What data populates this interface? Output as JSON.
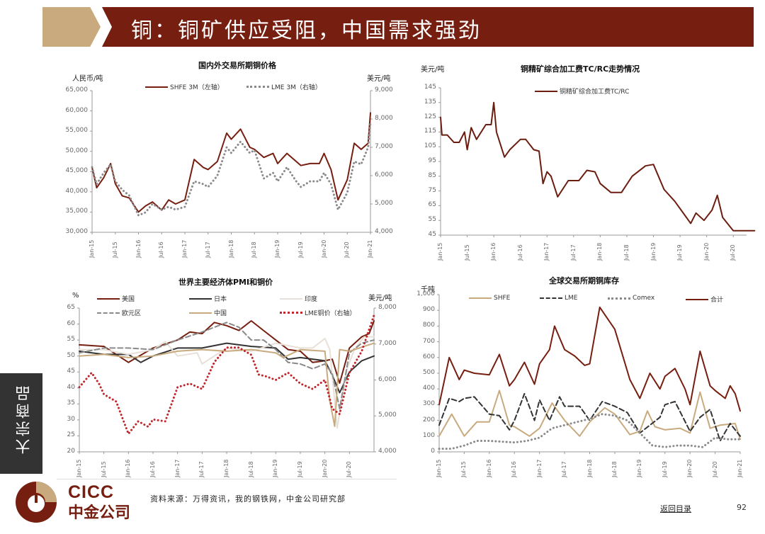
{
  "header": {
    "title": "铜：铜矿供应受阻，中国需求强劲"
  },
  "side_label": "大宗商品",
  "footer": {
    "logo_en": "CICC",
    "logo_cn": "中金公司",
    "source": "资料来源：万得资讯，我的钢铁网，中金公司研究部",
    "back_link": "返回目录",
    "page_number": "92"
  },
  "colors": {
    "brand": "#761f10",
    "gold": "#c8aa7e",
    "dark": "#333333"
  },
  "chart_data": [
    {
      "id": "copper-price",
      "type": "line",
      "title": "国内外交易所期铜价格",
      "ylabel_left": "人民币/吨",
      "ylabel_right": "美元/吨",
      "ylim_left": [
        30000,
        65000
      ],
      "ylim_right": [
        4000,
        9000
      ],
      "yticks_left": [
        "65,000",
        "60,000",
        "55,000",
        "50,000",
        "45,000",
        "40,000",
        "35,000",
        "30,000"
      ],
      "yticks_right": [
        "9,000",
        "8,000",
        "7,000",
        "6,000",
        "5,000",
        "4,000"
      ],
      "xticks": [
        "Jan-15",
        "Jul-15",
        "Jan-16",
        "Jul-16",
        "Jan-17",
        "Jul-17",
        "Jan-18",
        "Jul-18",
        "Jan-19",
        "Jul-19",
        "Jan-20",
        "Jul-20",
        "Jan-21"
      ],
      "legend": [
        "SHFE 3M（左轴）",
        "LME 3M（右轴）"
      ],
      "series": [
        {
          "name": "SHFE 3M（左轴）",
          "axis": "left",
          "color": "#761f10",
          "style": "solid",
          "x": [
            0,
            0.2,
            0.5,
            0.8,
            1,
            1.3,
            1.6,
            2,
            2.3,
            2.6,
            3,
            3.3,
            3.6,
            4,
            4.4,
            4.8,
            5,
            5.4,
            5.8,
            6,
            6.4,
            6.8,
            7,
            7.4,
            7.8,
            8,
            8.4,
            8.8,
            9,
            9.4,
            9.8,
            10,
            10.3,
            10.6,
            11,
            11.3,
            11.6,
            11.9,
            12
          ],
          "values": [
            46000,
            41000,
            43500,
            47000,
            42000,
            39000,
            38500,
            35000,
            36500,
            37500,
            35500,
            38000,
            37000,
            38000,
            48000,
            46000,
            45500,
            47500,
            54500,
            53000,
            55500,
            51000,
            50500,
            48500,
            49500,
            47000,
            49500,
            47500,
            46500,
            47000,
            47000,
            49500,
            45500,
            38000,
            43000,
            52000,
            50500,
            52000,
            59500
          ]
        },
        {
          "name": "LME 3M（右轴）",
          "axis": "right",
          "color": "#8a8a8a",
          "style": "dotted",
          "x": [
            0,
            0.2,
            0.5,
            0.8,
            1,
            1.3,
            1.6,
            2,
            2.3,
            2.6,
            3,
            3.3,
            3.6,
            4,
            4.4,
            4.8,
            5,
            5.4,
            5.8,
            6,
            6.4,
            6.8,
            7,
            7.4,
            7.8,
            8,
            8.4,
            8.8,
            9,
            9.4,
            9.8,
            10,
            10.3,
            10.6,
            11,
            11.3,
            11.6,
            11.9,
            12
          ],
          "values": [
            6300,
            5700,
            6100,
            6400,
            5800,
            5500,
            5300,
            4600,
            4700,
            5000,
            4800,
            4900,
            4800,
            4900,
            5800,
            5700,
            5600,
            6000,
            7000,
            6800,
            7200,
            6800,
            6900,
            5900,
            6100,
            5800,
            6300,
            5800,
            5600,
            5800,
            5800,
            6100,
            5700,
            4800,
            5400,
            6500,
            6400,
            7000,
            7900
          ]
        }
      ]
    },
    {
      "id": "tc-rc",
      "type": "line",
      "title": "铜精矿综合加工费TC/RC走势情况",
      "ylabel": "美元/吨",
      "ylim": [
        45,
        145
      ],
      "yticks": [
        "145",
        "135",
        "125",
        "115",
        "105",
        "95",
        "85",
        "75",
        "65",
        "55",
        "45"
      ],
      "xticks": [
        "Jan-15",
        "Jul-15",
        "Jan-16",
        "Jul-16",
        "Jan-17",
        "Jul-17",
        "Jan-18",
        "Jul-18",
        "Jan-19",
        "Jul-19",
        "Jan-20",
        "Jul-20"
      ],
      "legend": [
        "铜精矿综合加工费TC/RC"
      ],
      "series": [
        {
          "name": "铜精矿综合加工费TC/RC",
          "color": "#6b1d10",
          "style": "solid",
          "x": [
            0,
            0.05,
            0.25,
            0.5,
            0.7,
            0.9,
            1.0,
            1.15,
            1.35,
            1.7,
            1.9,
            2.0,
            2.1,
            2.4,
            2.6,
            3.0,
            3.2,
            3.5,
            3.7,
            3.85,
            4.0,
            4.15,
            4.4,
            4.8,
            5.2,
            5.5,
            5.8,
            6.0,
            6.4,
            6.8,
            7.2,
            7.7,
            8.0,
            8.4,
            8.8,
            9.2,
            9.4,
            9.6,
            9.9,
            10.2,
            10.4,
            10.6,
            11.0,
            11.6,
            11.8
          ],
          "values": [
            125,
            113,
            113,
            108,
            108,
            115,
            103,
            118,
            110,
            120,
            120,
            135,
            115,
            98,
            103,
            110,
            110,
            103,
            102,
            80,
            88,
            85,
            71,
            82,
            82,
            89,
            88,
            80,
            74,
            74,
            85,
            92,
            93,
            76,
            68,
            58,
            53,
            60,
            55,
            62,
            72,
            57,
            48,
            48,
            48
          ]
        }
      ]
    },
    {
      "id": "pmi",
      "type": "line",
      "title": "世界主要经济体PMI和铜价",
      "ylabel_left": "%",
      "ylabel_right": "美元/吨",
      "ylim_left": [
        20,
        65
      ],
      "ylim_right": [
        4000,
        8000
      ],
      "yticks_left": [
        "65",
        "60",
        "55",
        "50",
        "45",
        "40",
        "35",
        "30",
        "25",
        "20"
      ],
      "yticks_right": [
        "8,000",
        "7,000",
        "6,000",
        "5,000",
        "4,000"
      ],
      "xticks": [
        "Jan-15",
        "Jul-15",
        "Jan-16",
        "Jul-16",
        "Jan-17",
        "Jul-17",
        "Jan-18",
        "Jul-18",
        "Jan-19",
        "Jul-19",
        "Jan-20",
        "Jul-20"
      ],
      "legend": [
        "美国",
        "日本",
        "印度",
        "欧元区",
        "中国",
        "LME铜价（右轴）"
      ],
      "series": [
        {
          "name": "美国",
          "color": "#761f10",
          "style": "solid",
          "x": [
            0,
            1,
            2,
            3,
            4,
            4.5,
            5,
            5.5,
            6,
            6.5,
            7,
            7.5,
            8,
            8.5,
            9,
            9.5,
            10,
            10.3,
            10.6,
            11,
            11.5,
            11.8,
            12
          ],
          "values": [
            53.5,
            53,
            48,
            52.5,
            55,
            57.5,
            57,
            60.5,
            59.5,
            58,
            61,
            58,
            55,
            52,
            51.5,
            48,
            48.5,
            49,
            41.5,
            52.5,
            56,
            57,
            61
          ]
        },
        {
          "name": "日本",
          "color": "#333333",
          "style": "solid",
          "x": [
            0,
            1,
            2,
            2.5,
            3,
            4,
            5,
            6,
            7,
            8,
            8.5,
            9,
            10,
            10.3,
            10.6,
            11,
            11.5,
            12
          ],
          "values": [
            51.5,
            50.5,
            50.5,
            48,
            50,
            52.5,
            52.5,
            54,
            53,
            52.5,
            49,
            49.5,
            48.5,
            44,
            38.5,
            45,
            48.5,
            50
          ]
        },
        {
          "name": "印度",
          "color": "#e8e0d8",
          "style": "solid",
          "x": [
            0,
            1,
            2,
            3,
            3.5,
            4,
            4.8,
            5,
            6,
            7,
            8,
            9,
            9.5,
            10,
            10.2,
            10.5,
            10.9,
            11.2,
            11.6,
            12
          ],
          "values": [
            52,
            52,
            50.5,
            52,
            54.5,
            50,
            51,
            47.5,
            52.5,
            51.5,
            54,
            52.5,
            52.5,
            55.5,
            52,
            27.5,
            46,
            52,
            56,
            56
          ]
        },
        {
          "name": "欧元区",
          "color": "#8a8a8a",
          "style": "dashed",
          "x": [
            0,
            1,
            2,
            3,
            4,
            5,
            6,
            6.5,
            7,
            7.5,
            8,
            8.5,
            9,
            9.5,
            10,
            10.3,
            10.6,
            11,
            11.5,
            12
          ],
          "values": [
            51,
            52.5,
            52.5,
            52,
            55,
            57.5,
            60.5,
            59,
            55,
            55,
            52,
            48,
            47.5,
            46,
            47.5,
            44.5,
            33.5,
            51,
            54,
            55
          ]
        },
        {
          "name": "中国",
          "color": "#c8aa7e",
          "style": "solid",
          "x": [
            0,
            1,
            2,
            3,
            4,
            5,
            6,
            7,
            8,
            8.3,
            9,
            10,
            10.2,
            10.4,
            10.6,
            11,
            12
          ],
          "values": [
            50,
            50.5,
            49.5,
            50,
            51.5,
            52,
            51.5,
            52,
            51,
            49.5,
            52,
            51.5,
            36,
            28,
            52,
            51.5,
            54
          ]
        },
        {
          "name": "LME铜价（右轴）",
          "axis": "right",
          "color": "#c0272d",
          "style": "dotted",
          "x": [
            0,
            0.5,
            0.8,
            1,
            1.5,
            2,
            2.4,
            2.8,
            3,
            3.5,
            4,
            4.5,
            5,
            5.5,
            6,
            6.5,
            7,
            7.3,
            7.6,
            8,
            8.5,
            9,
            9.5,
            10,
            10.3,
            10.6,
            11,
            11.5,
            12
          ],
          "values": [
            5800,
            6200,
            5900,
            5600,
            5400,
            4500,
            4850,
            4700,
            4900,
            4850,
            5800,
            5900,
            5750,
            6500,
            6900,
            6900,
            6700,
            6150,
            6100,
            6000,
            6200,
            5900,
            5750,
            6000,
            5200,
            5050,
            6200,
            6800,
            7800
          ]
        }
      ]
    },
    {
      "id": "inventory",
      "type": "line",
      "title": "全球交易所期铜库存",
      "ylabel": "千吨",
      "ylim": [
        0,
        1000
      ],
      "yticks": [
        "1,000",
        "900",
        "800",
        "700",
        "600",
        "500",
        "400",
        "300",
        "200",
        "100",
        "0"
      ],
      "xticks": [
        "Jan-15",
        "Jul-15",
        "Jan-16",
        "Jul-16",
        "Jan-17",
        "Jul-17",
        "Jan-18",
        "Jul-18",
        "Jan-19",
        "Jul-19",
        "Jan-20",
        "Jul-20",
        "Jan-21"
      ],
      "legend": [
        "SHFE",
        "LME",
        "Comex",
        "合计"
      ],
      "series": [
        {
          "name": "SHFE",
          "color": "#c8aa7e",
          "style": "solid",
          "x": [
            0,
            0.5,
            1,
            1.5,
            2,
            2.4,
            2.8,
            3,
            3.6,
            4,
            4.5,
            5,
            5.6,
            6,
            6.6,
            7,
            7.6,
            8,
            8.3,
            8.6,
            9,
            9.6,
            10,
            10.4,
            10.8,
            11.2,
            11.8,
            12
          ],
          "values": [
            100,
            240,
            100,
            190,
            190,
            390,
            170,
            160,
            100,
            150,
            310,
            200,
            100,
            190,
            280,
            240,
            110,
            130,
            260,
            160,
            140,
            150,
            120,
            380,
            150,
            170,
            180,
            80
          ]
        },
        {
          "name": "LME",
          "color": "#333333",
          "style": "dashed",
          "x": [
            0,
            0.4,
            0.8,
            1,
            1.4,
            2,
            2.4,
            2.8,
            3,
            3.4,
            3.8,
            4,
            4.4,
            4.8,
            5,
            5.6,
            6,
            6.5,
            7,
            7.5,
            8,
            8.4,
            8.8,
            9,
            9.4,
            10,
            10.4,
            10.8,
            11.2,
            11.6,
            12
          ],
          "values": [
            170,
            340,
            320,
            340,
            350,
            240,
            230,
            140,
            200,
            370,
            200,
            330,
            200,
            350,
            290,
            290,
            200,
            320,
            290,
            250,
            120,
            170,
            220,
            300,
            320,
            130,
            220,
            270,
            70,
            180,
            100
          ]
        },
        {
          "name": "Comex",
          "color": "#8a8a8a",
          "style": "dotted",
          "x": [
            0,
            0.5,
            1,
            1.5,
            2,
            3,
            3.5,
            4,
            4.5,
            5,
            5.5,
            6,
            6.5,
            7,
            7.5,
            8,
            8.5,
            9,
            9.5,
            10,
            10.5,
            11,
            11.5,
            12
          ],
          "values": [
            20,
            20,
            40,
            70,
            70,
            60,
            70,
            90,
            150,
            170,
            190,
            210,
            240,
            230,
            200,
            120,
            40,
            30,
            40,
            40,
            30,
            90,
            80,
            80
          ]
        },
        {
          "name": "合计",
          "color": "#761f10",
          "style": "solid",
          "x": [
            0,
            0.4,
            0.8,
            1,
            1.4,
            2,
            2.4,
            2.8,
            3,
            3.4,
            3.8,
            4,
            4.4,
            4.6,
            5,
            5.4,
            5.8,
            6,
            6.4,
            7,
            7.6,
            8,
            8.4,
            8.8,
            9,
            9.4,
            9.8,
            10,
            10.4,
            10.8,
            11,
            11.4,
            11.6,
            11.8,
            12
          ],
          "values": [
            300,
            600,
            460,
            520,
            500,
            490,
            620,
            420,
            460,
            570,
            430,
            560,
            650,
            800,
            650,
            610,
            550,
            560,
            920,
            780,
            460,
            340,
            500,
            400,
            480,
            530,
            400,
            300,
            640,
            420,
            390,
            340,
            420,
            370,
            260
          ]
        }
      ]
    }
  ]
}
